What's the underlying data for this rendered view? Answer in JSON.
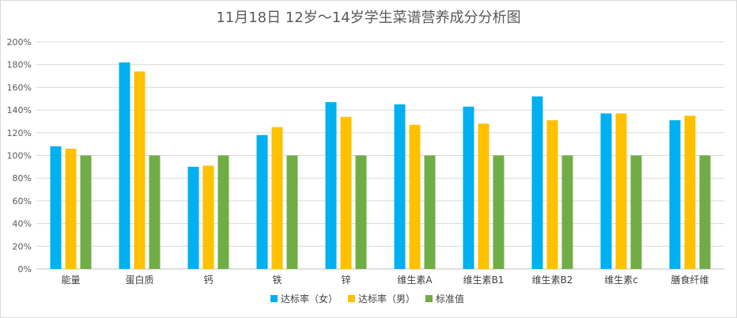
{
  "chart_data": {
    "type": "bar",
    "title": "11月18日 12岁～14岁学生菜谱营养成分分析图",
    "xlabel": "",
    "ylabel": "",
    "ylim": [
      0,
      200
    ],
    "yticks": [
      0,
      20,
      40,
      60,
      80,
      100,
      120,
      140,
      160,
      180,
      200
    ],
    "ytick_suffix": "%",
    "grid": true,
    "legend_position": "bottom",
    "categories": [
      "能量",
      "蛋白质",
      "钙",
      "铁",
      "锌",
      "维生素A",
      "维生素B1",
      "维生素B2",
      "维生素c",
      "膳食纤维"
    ],
    "series": [
      {
        "name": "达标率（女）",
        "color": "#00B0F0",
        "values": [
          108,
          182,
          90,
          118,
          147,
          145,
          143,
          152,
          137,
          131
        ]
      },
      {
        "name": "达标率（男）",
        "color": "#FFC000",
        "values": [
          106,
          174,
          91,
          125,
          134,
          127,
          128,
          131,
          137,
          135
        ]
      },
      {
        "name": "标准值",
        "color": "#70AD47",
        "values": [
          100,
          100,
          100,
          100,
          100,
          100,
          100,
          100,
          100,
          100
        ]
      }
    ]
  }
}
